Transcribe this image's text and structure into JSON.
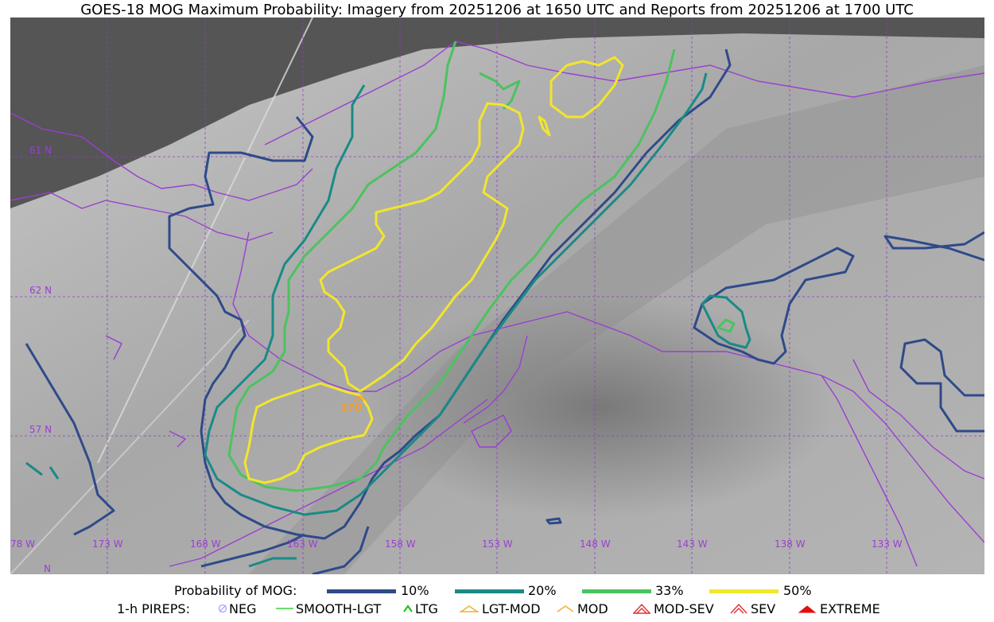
{
  "title": "GOES-18 MOG Maximum Probability: Imagery from 20251206 at 1650 UTC and Reports from 20251206 at 1700 UTC",
  "map": {
    "lat_labels": [
      "61 N",
      "62 N",
      "57 N"
    ],
    "lon_labels": [
      "78 W",
      "173 W",
      "168 W",
      "163 W",
      "158 W",
      "153 W",
      "148 W",
      "143 W",
      "138 W",
      "133 W"
    ],
    "corner_label": "N",
    "report_label": "370",
    "colors": {
      "coast": "#9a3fd0",
      "c10": "#2f4a8a",
      "c20": "#1a8a86",
      "c33": "#4cc260",
      "c50": "#f2e52c",
      "report": "#f0a030"
    }
  },
  "legend": {
    "prob_title": "Probability of MOG:",
    "prob_items": [
      {
        "label": "10%",
        "color": "#2f4a8a"
      },
      {
        "label": "20%",
        "color": "#1a8a86"
      },
      {
        "label": "33%",
        "color": "#4cc260"
      },
      {
        "label": "50%",
        "color": "#f2e52c"
      }
    ],
    "pireps_title": "1-h PIREPS:",
    "pireps_items": [
      {
        "label": "NEG",
        "icon": "neg-icon",
        "color": "#b0b0ff"
      },
      {
        "label": "SMOOTH-LGT",
        "icon": "smooth-lgt-icon",
        "color": "#3cd23c"
      },
      {
        "label": "LTG",
        "icon": "ltg-icon",
        "color": "#12c212"
      },
      {
        "label": "LGT-MOD",
        "icon": "lgt-mod-icon",
        "color": "#f0b030"
      },
      {
        "label": "MOD",
        "icon": "mod-icon",
        "color": "#f0b030"
      },
      {
        "label": "MOD-SEV",
        "icon": "mod-sev-icon",
        "color": "#e03030"
      },
      {
        "label": "SEV",
        "icon": "sev-icon",
        "color": "#e03030"
      },
      {
        "label": "EXTREME",
        "icon": "extreme-icon",
        "color": "#e01010"
      }
    ]
  }
}
